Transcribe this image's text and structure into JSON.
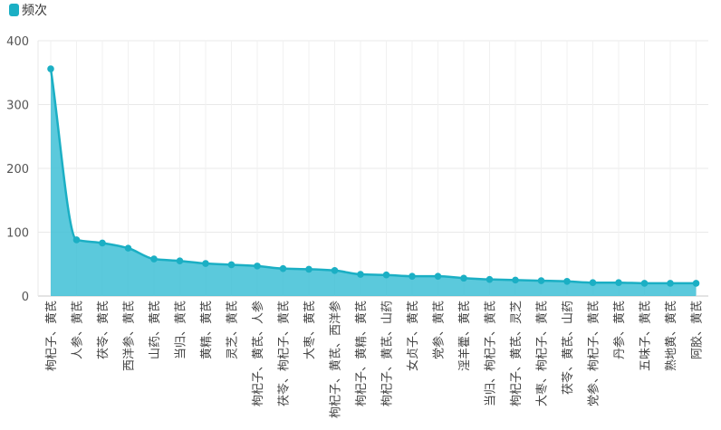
{
  "colors": {
    "series": "#1BAFC4",
    "fill": "#3EC0D6",
    "grid": "#e9e9e9",
    "axis": "#c8c8c8"
  },
  "legend": {
    "label": "频次",
    "icon": "rounded-square-icon",
    "placement": "top-left"
  },
  "chart_data": {
    "type": "area",
    "ylim": [
      0,
      400
    ],
    "yticks": [
      0,
      100,
      200,
      300,
      400
    ],
    "grid": true,
    "categories": [
      "枸杞子、黄芪",
      "人参、黄芪",
      "茯苓、黄芪",
      "西洋参、黄芪",
      "山药、黄芪",
      "当归、黄芪",
      "黄精、黄芪",
      "灵芝、黄芪",
      "枸杞子、黄芪、人参",
      "茯苓、枸杞子、黄芪",
      "大枣、黄芪",
      "枸杞子、黄芪、西洋参",
      "枸杞子、黄精、黄芪",
      "枸杞子、黄芪、山药",
      "女贞子、黄芪",
      "党参、黄芪",
      "淫羊藿、黄芪",
      "当归、枸杞子、黄芪",
      "枸杞子、黄芪、灵芝",
      "大枣、枸杞子、黄芪",
      "茯苓、黄芪、山药",
      "党参、枸杞子、黄芪",
      "丹参、黄芪",
      "五味子、黄芪",
      "熟地黄、黄芪",
      "阿胶、黄芪"
    ],
    "series": [
      {
        "name": "频次",
        "values": [
          356,
          88,
          83,
          75,
          58,
          55,
          51,
          49,
          47,
          43,
          42,
          40,
          34,
          33,
          31,
          31,
          28,
          26,
          25,
          24,
          23,
          21,
          21,
          20,
          20,
          20
        ]
      }
    ]
  }
}
